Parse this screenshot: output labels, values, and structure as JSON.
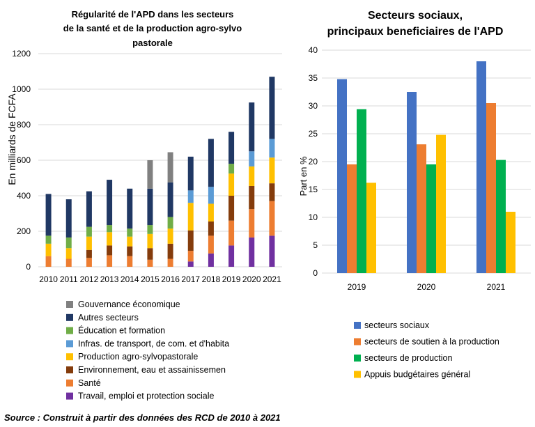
{
  "source": "Source : Construit à partir des données des RCD de 2010 à 2021",
  "chart_data": [
    {
      "type": "bar",
      "stacked": true,
      "title": [
        "Régularité de l'APD dans les secteurs",
        "de la santé et de la production agro-sylvo",
        "pastorale"
      ],
      "xlabel": "",
      "ylabel": "En milliards de FCFA",
      "ylim": [
        0,
        1200
      ],
      "yticks": [
        0,
        200,
        400,
        600,
        800,
        1000,
        1200
      ],
      "grid": true,
      "legend_position": "bottom",
      "categories": [
        "2010",
        "2011",
        "2012",
        "2013",
        "2014",
        "2015",
        "2016",
        "2017",
        "2018",
        "2019",
        "2020",
        "2021"
      ],
      "series": [
        {
          "name": "Travail, emploi et protection sociale",
          "color": "#7030A0",
          "values": [
            0,
            0,
            0,
            0,
            0,
            0,
            0,
            30,
            75,
            120,
            165,
            175
          ]
        },
        {
          "name": "Santé",
          "color": "#ED7D31",
          "values": [
            60,
            45,
            50,
            65,
            60,
            40,
            45,
            60,
            100,
            140,
            160,
            195
          ]
        },
        {
          "name": "Environnement, eau et assainissemen",
          "color": "#843C0C",
          "values": [
            0,
            0,
            45,
            55,
            55,
            65,
            85,
            115,
            80,
            140,
            130,
            100
          ]
        },
        {
          "name": "Production agro-sylvopastorale",
          "color": "#FFC000",
          "values": [
            70,
            60,
            75,
            75,
            55,
            80,
            85,
            155,
            100,
            125,
            110,
            145
          ]
        },
        {
          "name": "Infras. de transport, de com. et d'habita",
          "color": "#5B9BD5",
          "values": [
            0,
            0,
            0,
            0,
            0,
            0,
            0,
            70,
            95,
            0,
            85,
            105
          ]
        },
        {
          "name": "Éducation et formation",
          "color": "#70AD47",
          "values": [
            45,
            60,
            55,
            40,
            45,
            50,
            65,
            0,
            0,
            55,
            0,
            0
          ]
        },
        {
          "name": "Autres secteurs",
          "color": "#203864",
          "values": [
            235,
            215,
            200,
            255,
            225,
            205,
            195,
            190,
            270,
            180,
            275,
            350
          ]
        },
        {
          "name": "Gouvernance économique",
          "color": "#808080",
          "values": [
            0,
            0,
            0,
            0,
            0,
            160,
            170,
            0,
            0,
            0,
            0,
            0
          ]
        }
      ],
      "legend_order": [
        "Gouvernance économique",
        "Autres secteurs",
        "Éducation et formation",
        "Infras. de transport, de com. et d'habita",
        "Production agro-sylvopastorale",
        "Environnement, eau et assainissemen",
        "Santé",
        "Travail, emploi et protection sociale"
      ]
    },
    {
      "type": "bar",
      "title": [
        "Secteurs sociaux,",
        "principaux beneficiaires de l'APD"
      ],
      "xlabel": "",
      "ylabel": "Part en %",
      "ylim": [
        0,
        40
      ],
      "yticks": [
        0,
        5,
        10,
        15,
        20,
        25,
        30,
        35,
        40
      ],
      "grid": true,
      "legend_position": "bottom",
      "categories": [
        "2019",
        "2020",
        "2021"
      ],
      "series": [
        {
          "name": "secteurs sociaux",
          "color": "#4472C4",
          "values": [
            34.8,
            32.5,
            38
          ]
        },
        {
          "name": "secteurs de soutien à la production",
          "color": "#ED7D31",
          "values": [
            19.5,
            23.1,
            30.5
          ]
        },
        {
          "name": "secteurs de production",
          "color": "#00B050",
          "values": [
            29.4,
            19.5,
            20.3
          ]
        },
        {
          "name": "Appuis budgétaires général",
          "color": "#FFC000",
          "values": [
            16.2,
            24.8,
            11
          ]
        }
      ]
    }
  ]
}
